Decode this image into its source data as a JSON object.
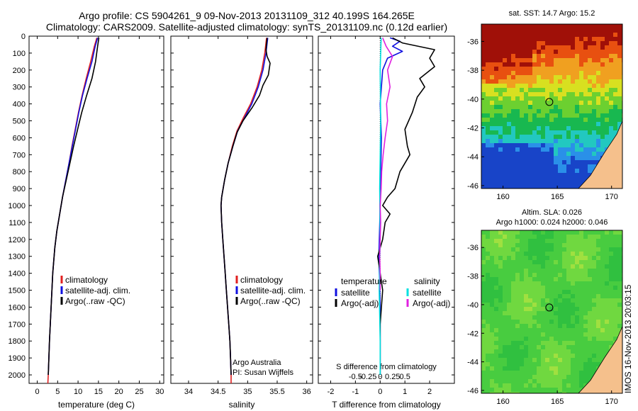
{
  "header": {
    "line1": "Argo profile: CS 5904261_9 09-Nov-2013 20131109_312 40.199S 164.265E",
    "line2": "Climatology: CARS2009. Satellite-adjusted climatology: synTS_20131109.nc (0.12d earlier)"
  },
  "colors": {
    "climatology": "#e02020",
    "satellite_adj": "#1010e0",
    "argo": "#000000",
    "sal_satellite": "#00e0e0",
    "sal_argo": "#e020e0",
    "land": "#f5c08c"
  },
  "chart_data": [
    {
      "type": "line",
      "id": "temperature-profile",
      "xlabel": "temperature (deg C)",
      "xlim": [
        -2,
        31
      ],
      "xticks": [
        0,
        5,
        10,
        15,
        20,
        25,
        30
      ],
      "ylim": [
        2050,
        0
      ],
      "yticks": [
        0,
        100,
        200,
        300,
        400,
        500,
        600,
        700,
        800,
        900,
        1000,
        1100,
        1200,
        1300,
        1400,
        1500,
        1600,
        1700,
        1800,
        1900,
        2000
      ],
      "legend": [
        "climatology",
        "satellite-adj. clim.",
        "Argo(..raw -QC)"
      ],
      "series": [
        {
          "name": "climatology",
          "color": "climatology",
          "points": [
            [
              14.6,
              10
            ],
            [
              14.0,
              60
            ],
            [
              13.1,
              150
            ],
            [
              12.0,
              250
            ],
            [
              11.0,
              350
            ],
            [
              10.1,
              450
            ],
            [
              9.3,
              550
            ],
            [
              8.5,
              650
            ],
            [
              7.8,
              750
            ],
            [
              7.0,
              850
            ],
            [
              6.2,
              950
            ],
            [
              5.5,
              1050
            ],
            [
              4.8,
              1150
            ],
            [
              4.3,
              1250
            ],
            [
              3.8,
              1400
            ],
            [
              3.4,
              1600
            ],
            [
              3.0,
              1800
            ],
            [
              2.7,
              2000
            ],
            [
              2.6,
              2050
            ]
          ]
        },
        {
          "name": "satellite-adj. clim.",
          "color": "satellite_adj",
          "points": [
            [
              14.8,
              10
            ],
            [
              14.2,
              60
            ],
            [
              13.4,
              150
            ],
            [
              12.2,
              250
            ],
            [
              11.1,
              350
            ],
            [
              10.2,
              450
            ],
            [
              9.4,
              550
            ],
            [
              8.6,
              650
            ],
            [
              7.8,
              750
            ],
            [
              7.0,
              850
            ],
            [
              6.2,
              950
            ],
            [
              5.5,
              1050
            ],
            [
              4.8,
              1150
            ],
            [
              4.3,
              1250
            ],
            [
              3.8,
              1400
            ],
            [
              3.4,
              1600
            ],
            [
              3.0,
              1800
            ],
            [
              2.7,
              2000
            ]
          ]
        },
        {
          "name": "Argo(..raw -QC)",
          "color": "argo",
          "points": [
            [
              15.1,
              10
            ],
            [
              14.8,
              60
            ],
            [
              14.3,
              150
            ],
            [
              13.4,
              250
            ],
            [
              12.1,
              350
            ],
            [
              10.9,
              450
            ],
            [
              9.9,
              550
            ],
            [
              8.9,
              650
            ],
            [
              8.0,
              750
            ],
            [
              7.1,
              850
            ],
            [
              6.2,
              950
            ],
            [
              5.5,
              1050
            ],
            [
              4.8,
              1150
            ],
            [
              4.3,
              1250
            ],
            [
              3.8,
              1400
            ],
            [
              3.4,
              1600
            ],
            [
              3.0,
              1800
            ],
            [
              2.7,
              2000
            ]
          ]
        }
      ]
    },
    {
      "type": "line",
      "id": "salinity-profile",
      "xlabel": "salinity",
      "xlim": [
        33.7,
        36.1
      ],
      "xticks": [
        34,
        34.5,
        35,
        35.5,
        36
      ],
      "xtick_labels": [
        "34",
        "34.5",
        "35",
        "35.5",
        "36"
      ],
      "ylim": [
        2050,
        0
      ],
      "legend": [
        "climatology",
        "satellite-adj. clim.",
        "Argo(..raw -QC)"
      ],
      "annotation": [
        "Argo Australia",
        "PI: Susan Wijffels"
      ],
      "series": [
        {
          "name": "climatology",
          "color": "climatology",
          "points": [
            [
              35.32,
              10
            ],
            [
              35.29,
              100
            ],
            [
              35.24,
              200
            ],
            [
              35.16,
              300
            ],
            [
              35.05,
              400
            ],
            [
              34.93,
              480
            ],
            [
              34.82,
              560
            ],
            [
              34.74,
              650
            ],
            [
              34.67,
              750
            ],
            [
              34.61,
              850
            ],
            [
              34.56,
              950
            ],
            [
              34.55,
              1000
            ],
            [
              34.56,
              1100
            ],
            [
              34.58,
              1200
            ],
            [
              34.6,
              1300
            ],
            [
              34.62,
              1400
            ],
            [
              34.64,
              1500
            ],
            [
              34.66,
              1600
            ],
            [
              34.68,
              1700
            ],
            [
              34.7,
              1800
            ],
            [
              34.71,
              1900
            ],
            [
              34.72,
              2000
            ],
            [
              34.72,
              2050
            ]
          ]
        },
        {
          "name": "satellite-adj. clim.",
          "color": "satellite_adj",
          "points": [
            [
              35.34,
              10
            ],
            [
              35.31,
              100
            ],
            [
              35.26,
              200
            ],
            [
              35.18,
              300
            ],
            [
              35.07,
              400
            ],
            [
              34.95,
              480
            ],
            [
              34.83,
              560
            ],
            [
              34.75,
              650
            ],
            [
              34.67,
              750
            ],
            [
              34.61,
              850
            ],
            [
              34.56,
              950
            ],
            [
              34.55,
              1000
            ],
            [
              34.56,
              1100
            ],
            [
              34.58,
              1200
            ],
            [
              34.6,
              1300
            ],
            [
              34.62,
              1400
            ],
            [
              34.64,
              1500
            ],
            [
              34.66,
              1600
            ],
            [
              34.68,
              1700
            ],
            [
              34.7,
              1800
            ],
            [
              34.71,
              1900
            ],
            [
              34.72,
              2000
            ]
          ]
        },
        {
          "name": "Argo(..raw -QC)",
          "color": "argo",
          "points": [
            [
              35.33,
              10
            ],
            [
              35.31,
              80
            ],
            [
              35.33,
              120
            ],
            [
              35.38,
              160
            ],
            [
              35.35,
              230
            ],
            [
              35.26,
              290
            ],
            [
              35.2,
              350
            ],
            [
              35.08,
              420
            ],
            [
              34.92,
              500
            ],
            [
              34.82,
              570
            ],
            [
              34.75,
              650
            ],
            [
              34.67,
              750
            ],
            [
              34.61,
              850
            ],
            [
              34.56,
              950
            ],
            [
              34.55,
              1000
            ],
            [
              34.56,
              1100
            ],
            [
              34.58,
              1200
            ],
            [
              34.6,
              1300
            ],
            [
              34.62,
              1400
            ],
            [
              34.64,
              1500
            ],
            [
              34.66,
              1600
            ],
            [
              34.68,
              1700
            ],
            [
              34.7,
              1800
            ],
            [
              34.71,
              1900
            ],
            [
              34.72,
              2000
            ]
          ]
        }
      ]
    },
    {
      "type": "line",
      "id": "difference-profile",
      "xlabel": "T difference from climatology",
      "xlabel_top": "S difference from climatology",
      "xlim": [
        -2.5,
        3.0
      ],
      "xticks": [
        -2,
        -1,
        0,
        1,
        2
      ],
      "s_ticks": [
        -0.5,
        -0.25,
        0,
        0.25,
        0.5
      ],
      "s_tick_labels": [
        "-0.5",
        "-0.25",
        "0",
        "0.25",
        "0.5"
      ],
      "ylim": [
        2050,
        0
      ],
      "legend_temperature": {
        "title": "temperature",
        "items": [
          "satellite",
          "Argo(-adj)"
        ]
      },
      "legend_salinity": {
        "title": "salinity",
        "items": [
          "satellite",
          "Argo(-adj)"
        ]
      },
      "series": [
        {
          "name": "temperature satellite",
          "color": "satellite_adj",
          "points": [
            [
              0.4,
              10
            ],
            [
              0.8,
              30
            ],
            [
              0.5,
              60
            ],
            [
              0.9,
              90
            ],
            [
              0.3,
              130
            ],
            [
              0.1,
              200
            ],
            [
              0.0,
              400
            ],
            [
              0.05,
              600
            ],
            [
              0.0,
              1000
            ],
            [
              -0.05,
              1300
            ],
            [
              0.0,
              1600
            ],
            [
              0.0,
              2000
            ]
          ]
        },
        {
          "name": "temperature Argo(-adj)",
          "color": "argo",
          "points": [
            [
              0.5,
              10
            ],
            [
              0.9,
              40
            ],
            [
              2.2,
              80
            ],
            [
              2.0,
              130
            ],
            [
              2.2,
              180
            ],
            [
              1.6,
              250
            ],
            [
              1.8,
              300
            ],
            [
              1.5,
              360
            ],
            [
              1.3,
              450
            ],
            [
              1.0,
              550
            ],
            [
              1.1,
              650
            ],
            [
              1.2,
              700
            ],
            [
              0.8,
              800
            ],
            [
              0.6,
              900
            ],
            [
              0.3,
              950
            ],
            [
              0.1,
              1000
            ],
            [
              0.4,
              1050
            ],
            [
              0.2,
              1100
            ],
            [
              0.1,
              1200
            ],
            [
              -0.1,
              1300
            ],
            [
              0.0,
              1400
            ],
            [
              0.1,
              1500
            ],
            [
              0.0,
              1700
            ],
            [
              0.0,
              2000
            ]
          ]
        },
        {
          "name": "salinity satellite",
          "color": "sal_satellite",
          "points": [
            [
              0.02,
              10
            ],
            [
              0.0,
              200
            ],
            [
              0.01,
              500
            ],
            [
              -0.01,
              900
            ],
            [
              0.0,
              1200
            ],
            [
              -0.02,
              1500
            ],
            [
              0.0,
              1800
            ],
            [
              0.0,
              2000
            ]
          ]
        },
        {
          "name": "salinity Argo(-adj)",
          "color": "sal_argo",
          "points": [
            [
              0.05,
              10
            ],
            [
              0.12,
              60
            ],
            [
              0.25,
              120
            ],
            [
              0.15,
              200
            ],
            [
              0.2,
              300
            ],
            [
              0.13,
              400
            ],
            [
              0.15,
              500
            ],
            [
              0.1,
              600
            ],
            [
              0.06,
              700
            ],
            [
              0.03,
              800
            ],
            [
              0.02,
              900
            ],
            [
              0.0,
              1000
            ],
            [
              0.01,
              1100
            ],
            [
              0.0,
              1200
            ],
            [
              -0.01,
              1300
            ],
            [
              0.0,
              1400
            ],
            [
              0.0,
              1500
            ]
          ]
        }
      ]
    }
  ],
  "maps": [
    {
      "id": "sst-map",
      "title": "sat. SST: 14.7  Argo: 15.2",
      "subtitle": "",
      "lon": [
        158,
        171
      ],
      "lat": [
        -46.2,
        -34.8
      ],
      "xticks": [
        160,
        165,
        170
      ],
      "yticks": [
        -36,
        -38,
        -40,
        -42,
        -44,
        -46
      ],
      "profile_position": [
        164.265,
        -40.199
      ],
      "colors": [
        "#1844c8",
        "#2a90e8",
        "#22c8c0",
        "#18b850",
        "#6cd030",
        "#d8e020",
        "#f0a020",
        "#e85010",
        "#a01008"
      ],
      "kind": "sst"
    },
    {
      "id": "sla-map",
      "title": "Altim. SLA: 0.026",
      "subtitle": "Argo h1000: 0.024 h2000: 0.046",
      "lon": [
        158,
        171
      ],
      "lat": [
        -46.2,
        -34.8
      ],
      "xticks": [
        160,
        165,
        170
      ],
      "yticks": [
        -36,
        -38,
        -40,
        -42,
        -44,
        -46
      ],
      "profile_position": [
        164.265,
        -40.199
      ],
      "colors": [
        "#30c040",
        "#48cc40",
        "#70d840",
        "#a0e040",
        "#d8ec50"
      ],
      "kind": "sla"
    }
  ],
  "timestamp": "IMOS 16-Nov-2013 20:03:15"
}
